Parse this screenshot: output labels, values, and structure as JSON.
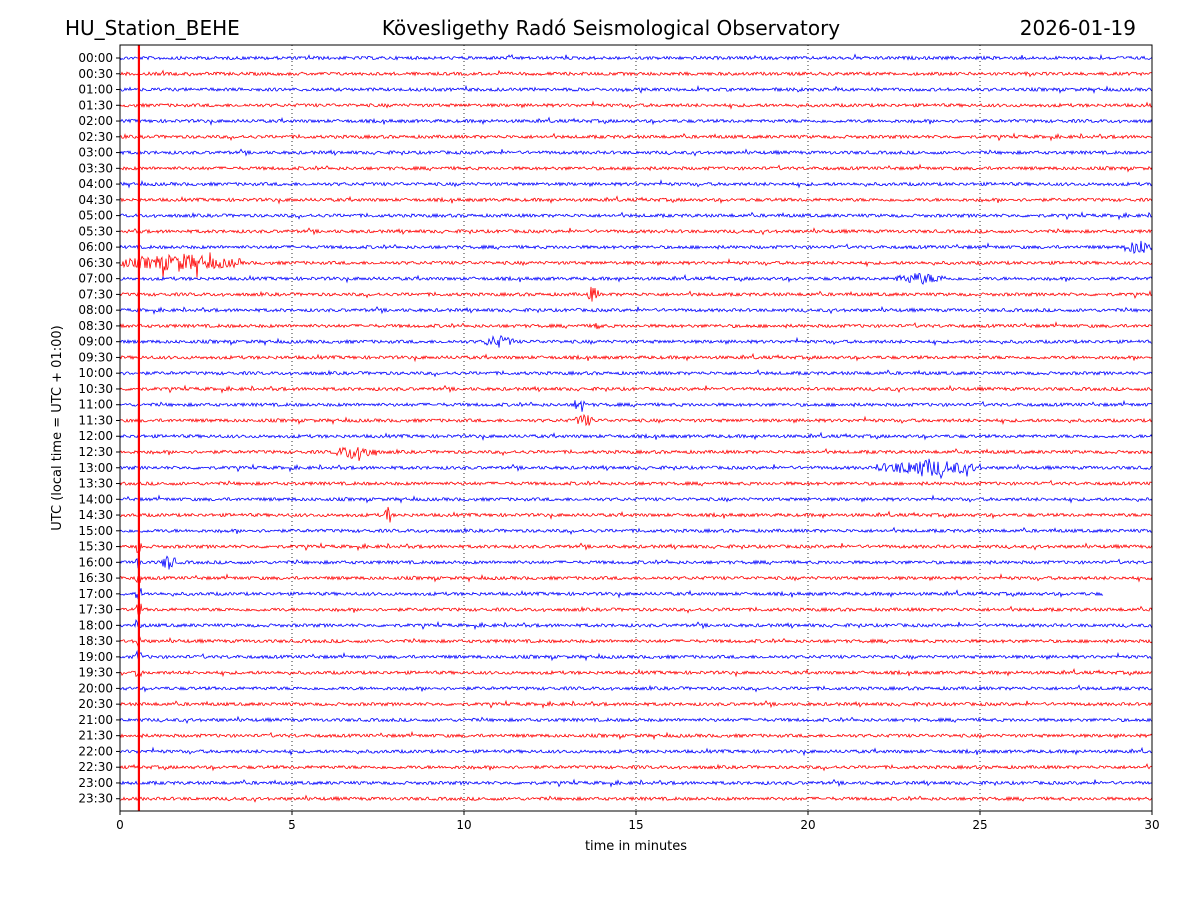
{
  "header": {
    "station": "HU_Station_BEHE",
    "observatory": "Kövesligethy Radó Seismological Observatory",
    "date": "2026-01-19"
  },
  "chart_data": {
    "type": "line",
    "title": "Kövesligethy Radó Seismological Observatory",
    "xlabel": "time in minutes",
    "ylabel": "UTC (local time = UTC + 01:00)",
    "xlim": [
      0,
      30
    ],
    "xticks": [
      "0",
      "5",
      "10",
      "15",
      "20",
      "25",
      "30"
    ],
    "xtick_values": [
      0,
      5,
      10,
      15,
      20,
      25,
      30
    ],
    "grid": "vertical dotted at x ticks",
    "row_labels": [
      "00:00",
      "00:30",
      "01:00",
      "01:30",
      "02:00",
      "02:30",
      "03:00",
      "03:30",
      "04:00",
      "04:30",
      "05:00",
      "05:30",
      "06:00",
      "06:30",
      "07:00",
      "07:30",
      "08:00",
      "08:30",
      "09:00",
      "09:30",
      "10:00",
      "10:30",
      "11:00",
      "11:30",
      "12:00",
      "12:30",
      "13:00",
      "13:30",
      "14:00",
      "14:30",
      "15:00",
      "15:30",
      "16:00",
      "16:30",
      "17:00",
      "17:30",
      "18:00",
      "18:30",
      "19:00",
      "19:30",
      "20:00",
      "20:30",
      "21:00",
      "21:30",
      "22:00",
      "22:30",
      "23:00",
      "23:30"
    ],
    "series_colors": [
      "#0000ff",
      "#ff0000"
    ],
    "vertical_marker_minute": 0.55,
    "marker_color": "#ff0000",
    "trace_end_minutes": {
      "17:00": 28.6
    },
    "events": [
      {
        "row": "06:00",
        "start": 29.2,
        "end": 30.0,
        "amp": 1.8
      },
      {
        "row": "06:30",
        "start": 0.0,
        "end": 3.5,
        "amp": 2.0
      },
      {
        "row": "07:00",
        "start": 22.5,
        "end": 24.0,
        "amp": 1.2
      },
      {
        "row": "07:30",
        "start": 13.6,
        "end": 13.9,
        "amp": 2.2
      },
      {
        "row": "08:30",
        "start": 13.8,
        "end": 14.0,
        "amp": 1.6
      },
      {
        "row": "09:00",
        "start": 10.5,
        "end": 11.5,
        "amp": 1.3
      },
      {
        "row": "11:00",
        "start": 13.2,
        "end": 13.5,
        "amp": 2.5
      },
      {
        "row": "11:30",
        "start": 13.2,
        "end": 13.8,
        "amp": 1.4
      },
      {
        "row": "12:30",
        "start": 6.2,
        "end": 7.5,
        "amp": 1.7
      },
      {
        "row": "13:00",
        "start": 22.0,
        "end": 25.0,
        "amp": 2.0
      },
      {
        "row": "14:30",
        "start": 7.7,
        "end": 7.9,
        "amp": 2.6
      },
      {
        "row": "16:00",
        "start": 1.2,
        "end": 1.6,
        "amp": 2.0
      }
    ]
  }
}
